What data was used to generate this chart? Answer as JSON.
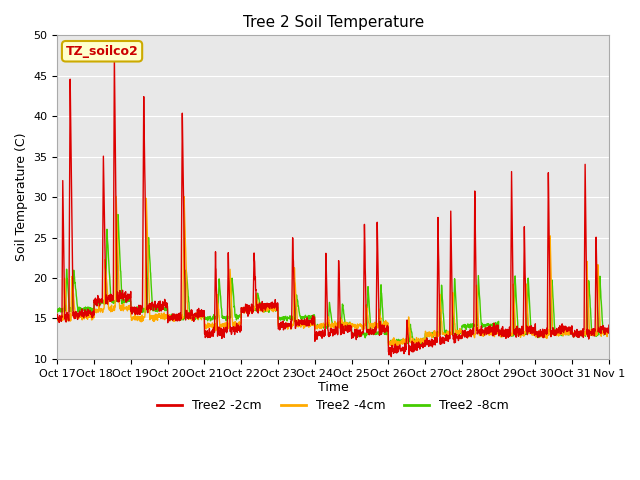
{
  "title": "Tree 2 Soil Temperature",
  "ylabel": "Soil Temperature (C)",
  "xlabel": "Time",
  "annotation_text": "TZ_soilco2",
  "annotation_bg": "#ffffcc",
  "annotation_border": "#ccaa00",
  "ylim": [
    10,
    50
  ],
  "yticks": [
    10,
    15,
    20,
    25,
    30,
    35,
    40,
    45,
    50
  ],
  "xtick_labels": [
    "Oct 17",
    "Oct 18",
    "Oct 19",
    "Oct 20",
    "Oct 21",
    "Oct 22",
    "Oct 23",
    "Oct 24",
    "Oct 25",
    "Oct 26",
    "Oct 27",
    "Oct 28",
    "Oct 29",
    "Oct 30",
    "Oct 31",
    "Nov 1"
  ],
  "legend": [
    {
      "label": "Tree2 -2cm",
      "color": "#dd0000"
    },
    {
      "label": "Tree2 -4cm",
      "color": "#ffaa00"
    },
    {
      "label": "Tree2 -8cm",
      "color": "#44cc00"
    }
  ],
  "bg_color": "#e8e8e8",
  "grid_color": "#ffffff",
  "line_width": 1.0,
  "annotation_fontsize": 9,
  "title_fontsize": 11,
  "tick_fontsize": 8,
  "label_fontsize": 9
}
